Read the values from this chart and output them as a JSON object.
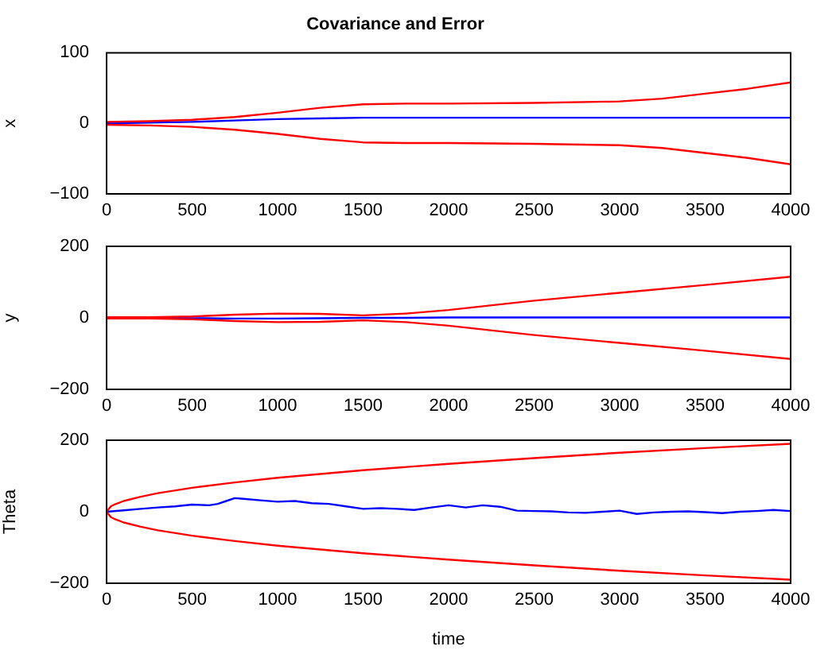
{
  "chart_data": [
    {
      "type": "line",
      "title": "Covariance and Error",
      "ylabel": "x",
      "x": [
        0,
        250,
        500,
        750,
        1000,
        1250,
        1500,
        1750,
        2000,
        2500,
        3000,
        3250,
        3500,
        3750,
        4000
      ],
      "xlim": [
        0,
        4000
      ],
      "xticks": [
        0,
        500,
        1000,
        1500,
        2000,
        2500,
        3000,
        3500,
        4000
      ],
      "ylim": [
        -100,
        100
      ],
      "yticks": [
        -100,
        0,
        100
      ],
      "series": [
        {
          "color": "#ff0000",
          "values": [
            2,
            3,
            5,
            9,
            15,
            22,
            27,
            28,
            28,
            29,
            31,
            35,
            42,
            49,
            58
          ]
        },
        {
          "color": "#ff0000",
          "values": [
            -2,
            -3,
            -5,
            -9,
            -15,
            -22,
            -27,
            -28,
            -28,
            -29,
            -31,
            -35,
            -42,
            -49,
            -58
          ]
        },
        {
          "color": "#0000ff",
          "values": [
            0,
            1,
            2,
            4,
            6,
            7,
            8,
            8,
            8,
            8,
            8,
            8,
            8,
            8,
            8
          ]
        }
      ]
    },
    {
      "type": "line",
      "ylabel": "y",
      "x": [
        0,
        250,
        500,
        750,
        1000,
        1250,
        1500,
        1750,
        2000,
        2500,
        3000,
        3500,
        4000
      ],
      "xlim": [
        0,
        4000
      ],
      "xticks": [
        0,
        500,
        1000,
        1500,
        2000,
        2500,
        3000,
        3500,
        4000
      ],
      "ylim": [
        -200,
        200
      ],
      "yticks": [
        -200,
        0,
        200
      ],
      "series": [
        {
          "color": "#ff0000",
          "values": [
            2,
            2,
            4,
            9,
            12,
            11,
            7,
            12,
            22,
            48,
            70,
            92,
            115
          ]
        },
        {
          "color": "#ff0000",
          "values": [
            -2,
            -2,
            -4,
            -9,
            -12,
            -11,
            -7,
            -12,
            -22,
            -48,
            -70,
            -92,
            -115
          ]
        },
        {
          "color": "#0000ff",
          "values": [
            0,
            0,
            -1,
            -2,
            -2,
            -1,
            0,
            0,
            1,
            1,
            1,
            1,
            1
          ]
        }
      ]
    },
    {
      "type": "line",
      "ylabel": "Theta",
      "xlabel": "time",
      "xlim": [
        0,
        4000
      ],
      "xticks": [
        0,
        500,
        1000,
        1500,
        2000,
        2500,
        3000,
        3500,
        4000
      ],
      "ylim": [
        -200,
        200
      ],
      "yticks": [
        -200,
        0,
        200
      ],
      "series": [
        {
          "color": "#ff0000",
          "x": [
            0,
            25,
            50,
            100,
            200,
            300,
            500,
            750,
            1000,
            1500,
            2000,
            2500,
            3000,
            3500,
            4000
          ],
          "values": [
            0,
            15,
            21,
            30,
            42,
            52,
            67,
            82,
            95,
            116,
            134,
            150,
            165,
            178,
            190
          ]
        },
        {
          "color": "#ff0000",
          "x": [
            0,
            25,
            50,
            100,
            200,
            300,
            500,
            750,
            1000,
            1500,
            2000,
            2500,
            3000,
            3500,
            4000
          ],
          "values": [
            0,
            -15,
            -21,
            -30,
            -42,
            -52,
            -67,
            -82,
            -95,
            -116,
            -134,
            -150,
            -165,
            -178,
            -190
          ]
        },
        {
          "color": "#0000ff",
          "x": [
            0,
            100,
            200,
            300,
            400,
            500,
            600,
            650,
            700,
            750,
            800,
            900,
            1000,
            1100,
            1200,
            1300,
            1400,
            1500,
            1600,
            1700,
            1800,
            1900,
            2000,
            2100,
            2200,
            2300,
            2400,
            2500,
            2600,
            2700,
            2800,
            2900,
            3000,
            3100,
            3200,
            3300,
            3400,
            3500,
            3600,
            3700,
            3800,
            3900,
            4000
          ],
          "values": [
            0,
            4,
            8,
            12,
            15,
            20,
            18,
            22,
            30,
            38,
            36,
            32,
            28,
            30,
            24,
            22,
            15,
            8,
            10,
            8,
            5,
            12,
            18,
            12,
            18,
            14,
            3,
            2,
            1,
            -2,
            -3,
            0,
            3,
            -6,
            -2,
            0,
            1,
            -1,
            -4,
            0,
            2,
            5,
            2
          ]
        }
      ]
    }
  ]
}
